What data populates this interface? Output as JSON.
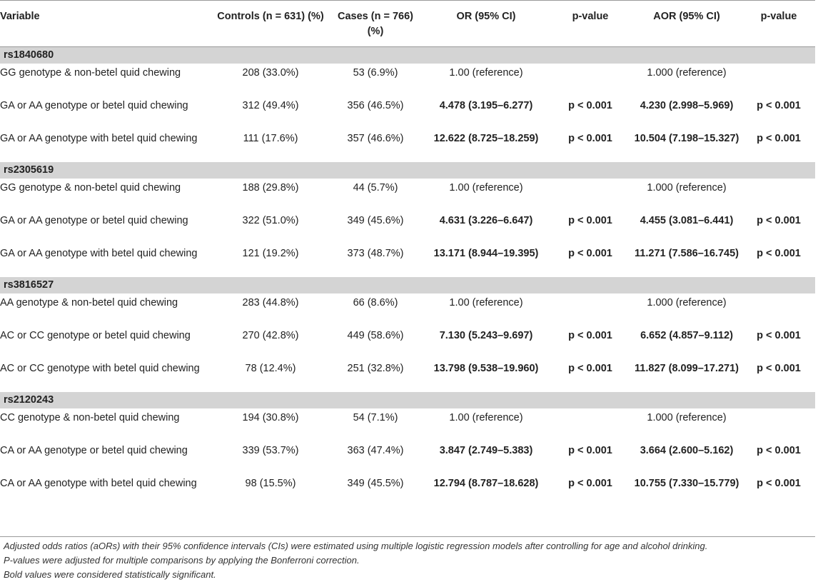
{
  "header": {
    "variable": "Variable",
    "controls": "Controls (n = 631) (%)",
    "cases": "Cases (n = 766) (%)",
    "or": "OR (95% CI)",
    "p1": "p-value",
    "aor": "AOR (95% CI)",
    "p2": "p-value"
  },
  "sections": [
    {
      "title": "rs1840680",
      "rows": [
        {
          "variable": "GG genotype & non-betel quid chewing",
          "controls": "208 (33.0%)",
          "cases": "53 (6.9%)",
          "or": "1.00 (reference)",
          "p1": "",
          "aor": "1.000 (reference)",
          "p2": ""
        },
        {
          "variable": "GA or AA genotype or betel quid chewing",
          "controls": "312 (49.4%)",
          "cases": "356 (46.5%)",
          "or": "4.478 (3.195–6.277)",
          "p1": "p < 0.001",
          "aor": "4.230 (2.998–5.969)",
          "p2": "p < 0.001"
        },
        {
          "variable": "GA or AA genotype with betel quid chewing",
          "controls": "111 (17.6%)",
          "cases": "357 (46.6%)",
          "or": "12.622 (8.725–18.259)",
          "p1": "p < 0.001",
          "aor": "10.504 (7.198–15.327)",
          "p2": "p < 0.001"
        }
      ]
    },
    {
      "title": "rs2305619",
      "rows": [
        {
          "variable": "GG genotype & non-betel quid chewing",
          "controls": "188 (29.8%)",
          "cases": "44 (5.7%)",
          "or": "1.00 (reference)",
          "p1": "",
          "aor": "1.000 (reference)",
          "p2": ""
        },
        {
          "variable": "GA or AA genotype or betel quid chewing",
          "controls": "322 (51.0%)",
          "cases": "349 (45.6%)",
          "or": "4.631 (3.226–6.647)",
          "p1": "p < 0.001",
          "aor": "4.455 (3.081–6.441)",
          "p2": "p < 0.001"
        },
        {
          "variable": "GA or AA genotype with betel quid chewing",
          "controls": "121 (19.2%)",
          "cases": "373 (48.7%)",
          "or": "13.171 (8.944–19.395)",
          "p1": "p < 0.001",
          "aor": "11.271 (7.586–16.745)",
          "p2": "p < 0.001"
        }
      ]
    },
    {
      "title": "rs3816527",
      "rows": [
        {
          "variable": "AA genotype & non-betel quid chewing",
          "controls": "283 (44.8%)",
          "cases": "66 (8.6%)",
          "or": "1.00 (reference)",
          "p1": "",
          "aor": "1.000 (reference)",
          "p2": ""
        },
        {
          "variable": "AC or CC genotype or betel quid chewing",
          "controls": "270 (42.8%)",
          "cases": "449 (58.6%)",
          "or": "7.130 (5.243–9.697)",
          "p1": "p < 0.001",
          "aor": "6.652 (4.857–9.112)",
          "p2": "p < 0.001"
        },
        {
          "variable": "AC or CC genotype with betel quid chewing",
          "controls": "78 (12.4%)",
          "cases": "251 (32.8%)",
          "or": "13.798 (9.538–19.960)",
          "p1": "p < 0.001",
          "aor": "11.827 (8.099–17.271)",
          "p2": "p < 0.001"
        }
      ]
    },
    {
      "title": "rs2120243",
      "rows": [
        {
          "variable": "CC genotype & non-betel quid chewing",
          "controls": "194 (30.8%)",
          "cases": "54 (7.1%)",
          "or": "1.00 (reference)",
          "p1": "",
          "aor": "1.000 (reference)",
          "p2": ""
        },
        {
          "variable": "CA or AA genotype or betel quid chewing",
          "controls": "339 (53.7%)",
          "cases": "363 (47.4%)",
          "or": "3.847 (2.749–5.383)",
          "p1": "p < 0.001",
          "aor": "3.664 (2.600–5.162)",
          "p2": "p < 0.001"
        },
        {
          "variable": "CA or AA genotype with betel quid chewing",
          "controls": "98 (15.5%)",
          "cases": "349 (45.5%)",
          "or": "12.794 (8.787–18.628)",
          "p1": "p < 0.001",
          "aor": "10.755 (7.330–15.779)",
          "p2": "p < 0.001"
        }
      ]
    }
  ],
  "notes": [
    "Adjusted odds ratios (aORs) with their 95% confidence intervals (CIs) were estimated using multiple logistic regression models after controlling for age and alcohol drinking.",
    "P-values were adjusted for multiple comparisons by applying the Bonferroni correction.",
    "Bold values were considered statistically significant."
  ]
}
